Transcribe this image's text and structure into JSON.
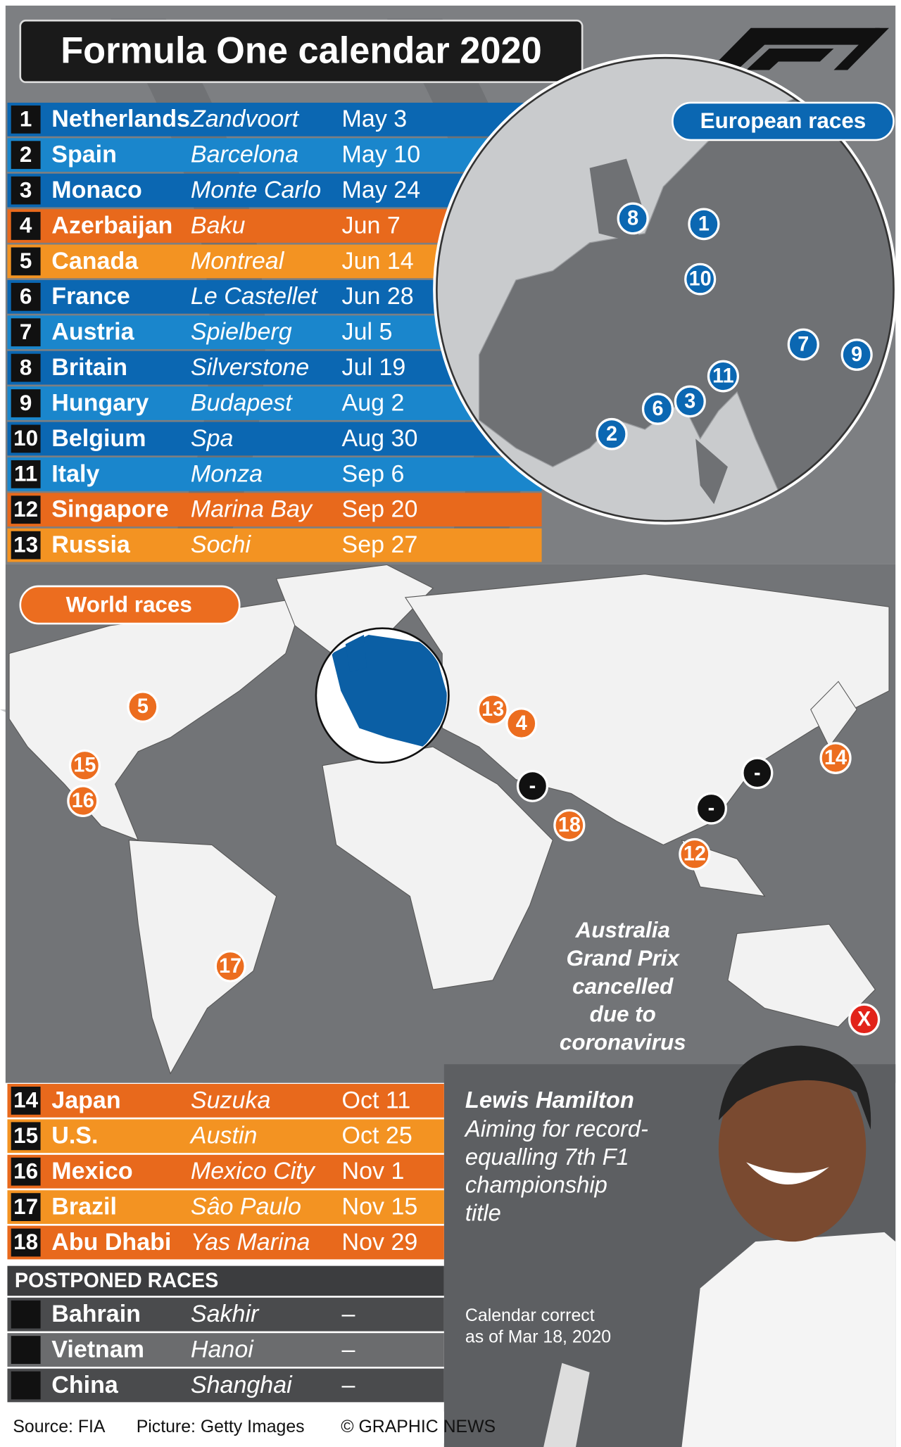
{
  "header": {
    "title": "Formula One calendar 2020"
  },
  "european_map": {
    "label": "European races",
    "markers": [
      "8",
      "1",
      "10",
      "7",
      "9",
      "11",
      "3",
      "6",
      "2"
    ],
    "marker_color": "#0b67b2"
  },
  "world_map": {
    "label": "World races",
    "markers": [
      {
        "label": "5",
        "color": "#ec6d1f"
      },
      {
        "label": "15",
        "color": "#ec6d1f"
      },
      {
        "label": "16",
        "color": "#ec6d1f"
      },
      {
        "label": "13",
        "color": "#ec6d1f"
      },
      {
        "label": "4",
        "color": "#ec6d1f"
      },
      {
        "label": "18",
        "color": "#ec6d1f"
      },
      {
        "label": "12",
        "color": "#ec6d1f"
      },
      {
        "label": "14",
        "color": "#ec6d1f"
      },
      {
        "label": "17",
        "color": "#ec6d1f"
      },
      {
        "label": "-",
        "color": "#111111"
      },
      {
        "label": "-",
        "color": "#111111"
      },
      {
        "label": "-",
        "color": "#111111"
      },
      {
        "label": "X",
        "color": "#e2231a"
      }
    ],
    "note": [
      "Australia",
      "Grand Prix",
      "cancelled",
      "due to",
      "coronavirus"
    ]
  },
  "races": [
    {
      "num": "1",
      "country": "Netherlands",
      "city": "Zandvoort",
      "date": "May 3",
      "color": "#0b67b2"
    },
    {
      "num": "2",
      "country": "Spain",
      "city": "Barcelona",
      "date": "May 10",
      "color": "#1a86cc"
    },
    {
      "num": "3",
      "country": "Monaco",
      "city": "Monte Carlo",
      "date": "May 24",
      "color": "#0b67b2"
    },
    {
      "num": "4",
      "country": "Azerbaijan",
      "city": "Baku",
      "date": "Jun 7",
      "color": "#e8691c"
    },
    {
      "num": "5",
      "country": "Canada",
      "city": "Montreal",
      "date": "Jun 14",
      "color": "#f39322"
    },
    {
      "num": "6",
      "country": "France",
      "city": "Le Castellet",
      "date": "Jun 28",
      "color": "#0b67b2"
    },
    {
      "num": "7",
      "country": "Austria",
      "city": "Spielberg",
      "date": "Jul 5",
      "color": "#1a86cc"
    },
    {
      "num": "8",
      "country": "Britain",
      "city": "Silverstone",
      "date": "Jul 19",
      "color": "#0b67b2"
    },
    {
      "num": "9",
      "country": "Hungary",
      "city": "Budapest",
      "date": "Aug 2",
      "color": "#1a86cc"
    },
    {
      "num": "10",
      "country": "Belgium",
      "city": "Spa",
      "date": "Aug 30",
      "color": "#0b67b2"
    },
    {
      "num": "11",
      "country": "Italy",
      "city": "Monza",
      "date": "Sep 6",
      "color": "#1a86cc"
    },
    {
      "num": "12",
      "country": "Singapore",
      "city": "Marina Bay",
      "date": "Sep 20",
      "color": "#e8691c"
    },
    {
      "num": "13",
      "country": "Russia",
      "city": "Sochi",
      "date": "Sep 27",
      "color": "#f39322"
    },
    {
      "num": "14",
      "country": "Japan",
      "city": "Suzuka",
      "date": "Oct 11",
      "color": "#e8691c"
    },
    {
      "num": "15",
      "country": "U.S.",
      "city": "Austin",
      "date": "Oct 25",
      "color": "#f39322"
    },
    {
      "num": "16",
      "country": "Mexico",
      "city": "Mexico City",
      "date": "Nov 1",
      "color": "#e8691c"
    },
    {
      "num": "17",
      "country": "Brazil",
      "city": "Sâo Paulo",
      "date": "Nov 15",
      "color": "#f39322"
    },
    {
      "num": "18",
      "country": "Abu Dhabi",
      "city": "Yas Marina",
      "date": "Nov 29",
      "color": "#e8691c"
    }
  ],
  "postponed": {
    "title": "POSTPONED RACES",
    "rows": [
      {
        "country": "Bahrain",
        "city": "Sakhir",
        "date": "–"
      },
      {
        "country": "Vietnam",
        "city": "Hanoi",
        "date": "–"
      },
      {
        "country": "China",
        "city": "Shanghai",
        "date": "–"
      }
    ]
  },
  "caption": {
    "name": "Lewis Hamilton",
    "text": [
      "Aiming for record-",
      "equalling 7th F1",
      "championship",
      "title"
    ]
  },
  "note": [
    "Calendar correct",
    "as of Mar 18, 2020"
  ],
  "footer": {
    "source": "Source: FIA",
    "picture": "Picture: Getty Images",
    "credit": "© GRAPHIC NEWS"
  }
}
